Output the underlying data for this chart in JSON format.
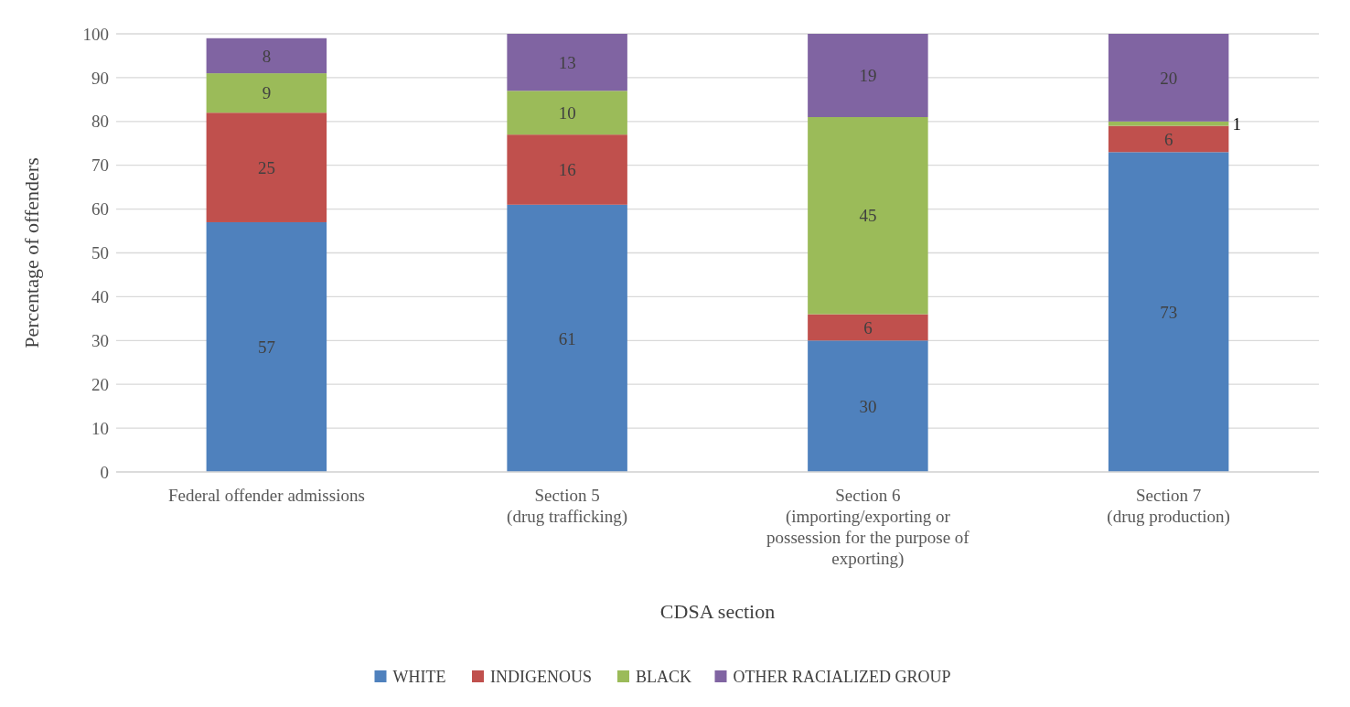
{
  "chart_data": {
    "type": "bar",
    "stacked": true,
    "xlabel": "CDSA section",
    "ylabel": "Percentage of offenders",
    "categories": [
      "Federal offender admissions",
      "Section 5\n(drug trafficking)",
      "Section 6\n(importing/exporting or\npossession for the purpose of\nexporting)",
      "Section 7\n(drug production)"
    ],
    "series": [
      {
        "name": "WHITE",
        "color": "#4f81bd",
        "values": [
          57,
          61,
          30,
          73
        ]
      },
      {
        "name": "INDIGENOUS",
        "color": "#c0504d",
        "values": [
          25,
          16,
          6,
          6
        ]
      },
      {
        "name": "BLACK",
        "color": "#9bbb59",
        "values": [
          9,
          10,
          45,
          1
        ]
      },
      {
        "name": "OTHER RACIALIZED GROUP",
        "color": "#8064a2",
        "values": [
          8,
          13,
          19,
          20
        ]
      }
    ],
    "ylim": [
      0,
      100
    ],
    "yticks": [
      0,
      10,
      20,
      30,
      40,
      50,
      60,
      70,
      80,
      90,
      100
    ],
    "grid": "y",
    "legend": "bottom",
    "data_labels": true
  }
}
